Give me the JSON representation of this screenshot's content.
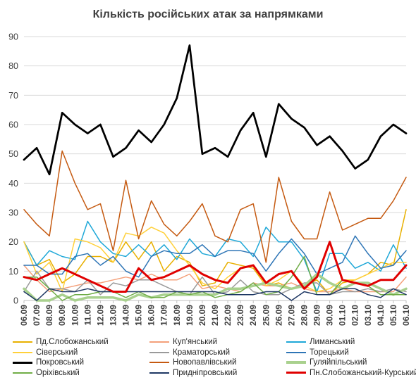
{
  "chart_data": {
    "type": "line",
    "title": "Кількість російських атак за напрямками",
    "xlabel": "",
    "ylabel": "",
    "ylim": [
      0,
      90
    ],
    "yticks": [
      0,
      10,
      20,
      30,
      40,
      50,
      60,
      70,
      80,
      90
    ],
    "grid": true,
    "legend_position": "bottom",
    "categories": [
      "06.09",
      "07.09",
      "08.09",
      "09.09",
      "10.09",
      "11.09",
      "12.09",
      "13.09",
      "14.09",
      "15.09",
      "16.09",
      "17.09",
      "18.09",
      "19.09",
      "20.09",
      "21.09",
      "22.09",
      "23.09",
      "24.09",
      "25.09",
      "26.09",
      "27.09",
      "28.09",
      "29.09",
      "30.09",
      "01.10",
      "02.10",
      "03.10",
      "04.10",
      "05.10",
      "06.10"
    ],
    "series": [
      {
        "name": "Пд.Слобожанський",
        "color": "#e8b000",
        "width": 1.5,
        "values": [
          20,
          12,
          14,
          6,
          9,
          15,
          15,
          13,
          20,
          14,
          20,
          10,
          15,
          13,
          5,
          6,
          13,
          12,
          11,
          5,
          6,
          4,
          5,
          7,
          2,
          6,
          7,
          9,
          13,
          12,
          31
        ]
      },
      {
        "name": "Куп'янський",
        "color": "#f4a07a",
        "width": 1.5,
        "values": [
          12,
          7,
          3,
          4,
          5,
          6,
          6,
          7,
          8,
          7,
          9,
          7,
          7,
          9,
          4,
          5,
          4,
          3,
          6,
          5,
          5,
          6,
          4,
          3,
          3,
          4,
          3,
          3,
          3,
          3,
          8
        ]
      },
      {
        "name": "Лиманський",
        "color": "#1fa8d8",
        "width": 1.5,
        "values": [
          20,
          12,
          17,
          15,
          14,
          27,
          20,
          16,
          15,
          19,
          15,
          19,
          14,
          21,
          16,
          15,
          21,
          20,
          15,
          25,
          20,
          20,
          14,
          3,
          16,
          16,
          11,
          13,
          10,
          19,
          11
        ]
      },
      {
        "name": "Сіверський",
        "color": "#ffd03a",
        "width": 1.5,
        "values": [
          20,
          9,
          13,
          3,
          21,
          20,
          18,
          13,
          23,
          22,
          25,
          23,
          17,
          12,
          6,
          4,
          8,
          11,
          12,
          5,
          7,
          10,
          5,
          3,
          4,
          7,
          7,
          9,
          11,
          13,
          13
        ]
      },
      {
        "name": "Краматорський",
        "color": "#9a9a9a",
        "width": 1.5,
        "values": [
          3,
          10,
          4,
          4,
          3,
          7,
          2,
          6,
          5,
          7,
          7,
          5,
          3,
          2,
          8,
          2,
          3,
          7,
          3,
          2,
          2,
          4,
          6,
          6,
          2,
          3,
          3,
          4,
          3,
          4,
          3
        ]
      },
      {
        "name": "Торецький",
        "color": "#2e75b6",
        "width": 1.5,
        "values": [
          12,
          12,
          9,
          9,
          15,
          16,
          12,
          15,
          10,
          8,
          15,
          17,
          16,
          16,
          19,
          15,
          17,
          17,
          16,
          10,
          16,
          21,
          16,
          9,
          11,
          13,
          22,
          16,
          11,
          12,
          17
        ]
      },
      {
        "name": "Покровський",
        "color": "#000000",
        "width": 2.75,
        "values": [
          48,
          52,
          43,
          64,
          60,
          57,
          60,
          49,
          52,
          58,
          54,
          60,
          69,
          87,
          50,
          52,
          49,
          58,
          64,
          49,
          67,
          62,
          59,
          53,
          56,
          51,
          45,
          48,
          56,
          60,
          57
        ]
      },
      {
        "name": "Новопавлівський",
        "color": "#c55a11",
        "width": 1.5,
        "values": [
          31,
          26,
          22,
          51,
          40,
          31,
          33,
          17,
          41,
          21,
          34,
          26,
          22,
          27,
          33,
          22,
          20,
          31,
          33,
          13,
          42,
          27,
          21,
          21,
          37,
          24,
          26,
          28,
          28,
          34,
          42
        ]
      },
      {
        "name": "Гуляйпільський",
        "color": "#a9d18e",
        "width": 3.5,
        "values": [
          4,
          0,
          0,
          2,
          0,
          1,
          1,
          1,
          0,
          2,
          1,
          2,
          2,
          2,
          2,
          2,
          4,
          4,
          5,
          6,
          5,
          4,
          5,
          9,
          6,
          4,
          6,
          6,
          4,
          2,
          4
        ]
      },
      {
        "name": "Оріхівський",
        "color": "#70ad47",
        "width": 1.5,
        "values": [
          8,
          8,
          4,
          0,
          2,
          2,
          3,
          3,
          1,
          3,
          1,
          1,
          3,
          2,
          3,
          1,
          2,
          3,
          6,
          2,
          3,
          8,
          15,
          2,
          2,
          7,
          6,
          5,
          2,
          2,
          2
        ]
      },
      {
        "name": "Придніпровський",
        "color": "#1f3864",
        "width": 1.5,
        "values": [
          3,
          0,
          4,
          3,
          3,
          4,
          3,
          3,
          3,
          3,
          3,
          3,
          3,
          3,
          3,
          3,
          2,
          2,
          2,
          3,
          3,
          0,
          3,
          2,
          2,
          4,
          4,
          2,
          1,
          4,
          2
        ]
      },
      {
        "name": "Пн.Слобожанський-Курський",
        "color": "#e00000",
        "width": 3,
        "values": [
          8,
          7,
          9,
          11,
          9,
          7,
          5,
          3,
          3,
          11,
          7,
          8,
          10,
          12,
          9,
          7,
          6,
          11,
          12,
          6,
          9,
          10,
          4,
          8,
          20,
          7,
          6,
          5,
          7,
          7,
          12
        ]
      }
    ]
  }
}
